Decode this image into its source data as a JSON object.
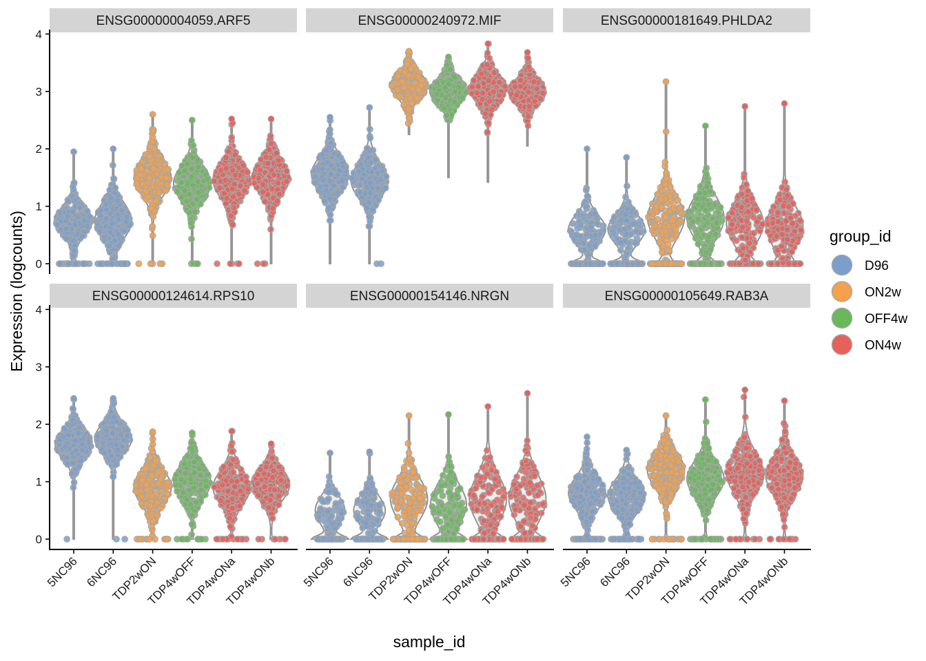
{
  "chart_data": {
    "type": "violin",
    "xlabel": "sample_id",
    "ylabel": "Expression (logcounts)",
    "ylim": [
      0,
      4
    ],
    "yticks": [
      0,
      1,
      2,
      3,
      4
    ],
    "samples": [
      "5NC96",
      "6NC96",
      "TDP2wON",
      "TDP4wOFF",
      "TDP4wONa",
      "TDP4wONb"
    ],
    "sample_groups": [
      "D96",
      "D96",
      "ON2w",
      "OFF4w",
      "ON4w",
      "ON4w"
    ],
    "legend": {
      "title": "group_id",
      "items": [
        {
          "label": "D96",
          "color": "#7a9fcc"
        },
        {
          "label": "ON2w",
          "color": "#f5a04a"
        },
        {
          "label": "OFF4w",
          "color": "#69b85a"
        },
        {
          "label": "ON4w",
          "color": "#e8605a"
        }
      ]
    },
    "panels": [
      {
        "title": "ENSG00000004059.ARF5",
        "medians": [
          0.75,
          0.75,
          1.5,
          1.4,
          1.45,
          1.5
        ],
        "spread": [
          0.25,
          0.3,
          0.3,
          0.3,
          0.3,
          0.3
        ],
        "min": [
          0,
          0,
          0,
          0,
          0,
          0
        ],
        "max": [
          1.95,
          2.0,
          2.6,
          2.5,
          2.52,
          2.52
        ],
        "zero_frac": [
          0.1,
          0.1,
          0.02,
          0.02,
          0.02,
          0.01
        ]
      },
      {
        "title": "ENSG00000240972.MIF",
        "medians": [
          1.55,
          1.45,
          3.1,
          3.0,
          3.05,
          3.0
        ],
        "spread": [
          0.3,
          0.3,
          0.22,
          0.22,
          0.25,
          0.22
        ],
        "min": [
          0,
          0,
          2.25,
          1.5,
          1.42,
          2.05
        ],
        "max": [
          2.55,
          2.72,
          3.7,
          3.6,
          3.83,
          3.68
        ],
        "zero_frac": [
          0.01,
          0.01,
          0,
          0,
          0,
          0
        ]
      },
      {
        "title": "ENSG00000181649.PHLDA2",
        "medians": [
          0.6,
          0.6,
          0.8,
          0.8,
          0.7,
          0.65
        ],
        "spread": [
          0.25,
          0.25,
          0.35,
          0.35,
          0.35,
          0.35
        ],
        "min": [
          0,
          0,
          0,
          0,
          0,
          0
        ],
        "max": [
          2.0,
          1.85,
          3.17,
          2.4,
          2.74,
          2.79
        ],
        "zero_frac": [
          0.55,
          0.55,
          0.3,
          0.35,
          0.35,
          0.3
        ]
      },
      {
        "title": "ENSG00000124614.RPS10",
        "medians": [
          1.65,
          1.75,
          0.9,
          1.0,
          0.9,
          0.95
        ],
        "spread": [
          0.25,
          0.25,
          0.3,
          0.3,
          0.3,
          0.28
        ],
        "min": [
          0,
          0,
          0,
          0,
          0,
          0
        ],
        "max": [
          2.45,
          2.45,
          1.87,
          1.85,
          1.88,
          1.66
        ],
        "zero_frac": [
          0.01,
          0.01,
          0.05,
          0.04,
          0.05,
          0.04
        ]
      },
      {
        "title": "ENSG00000154146.NRGN",
        "medians": [
          0.5,
          0.5,
          0.7,
          0.6,
          0.7,
          0.7
        ],
        "spread": [
          0.25,
          0.25,
          0.35,
          0.35,
          0.4,
          0.4
        ],
        "min": [
          0,
          0,
          0,
          0,
          0,
          0
        ],
        "max": [
          1.5,
          1.52,
          2.15,
          2.17,
          2.31,
          2.54
        ],
        "zero_frac": [
          0.7,
          0.65,
          0.45,
          0.5,
          0.45,
          0.45
        ]
      },
      {
        "title": "ENSG00000105649.RAB3A",
        "medians": [
          0.8,
          0.75,
          1.2,
          1.05,
          1.15,
          1.1
        ],
        "spread": [
          0.28,
          0.28,
          0.3,
          0.3,
          0.35,
          0.32
        ],
        "min": [
          0,
          0,
          0,
          0,
          0,
          0
        ],
        "max": [
          1.78,
          1.55,
          2.15,
          2.43,
          2.6,
          2.41
        ],
        "zero_frac": [
          0.15,
          0.15,
          0.05,
          0.08,
          0.06,
          0.06
        ]
      }
    ]
  }
}
